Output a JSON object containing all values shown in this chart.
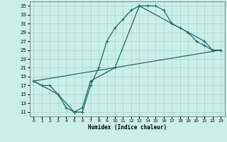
{
  "title": "",
  "xlabel": "Humidex (Indice chaleur)",
  "ylabel": "",
  "bg_color": "#cceee8",
  "grid_color": "#aad8d0",
  "line_color": "#1a6b6b",
  "ylim": [
    10,
    36
  ],
  "xlim": [
    -0.5,
    23.5
  ],
  "yticks": [
    11,
    13,
    15,
    17,
    19,
    21,
    23,
    25,
    27,
    29,
    31,
    33,
    35
  ],
  "xticks": [
    0,
    1,
    2,
    3,
    4,
    5,
    6,
    7,
    8,
    9,
    10,
    11,
    12,
    13,
    14,
    15,
    16,
    17,
    18,
    19,
    20,
    21,
    22,
    23
  ],
  "line1_x": [
    0,
    1,
    2,
    3,
    4,
    5,
    6,
    7,
    8,
    9,
    10,
    11,
    12,
    13,
    14,
    15,
    16,
    17,
    18,
    19,
    20,
    21,
    22,
    23
  ],
  "line1_y": [
    18,
    17,
    17,
    15,
    12,
    11,
    11,
    17,
    21,
    27,
    30,
    32,
    34,
    35,
    35,
    35,
    34,
    31,
    30,
    29,
    27,
    26,
    25,
    25
  ],
  "line2_x": [
    0,
    3,
    5,
    6,
    7,
    10,
    13,
    17,
    19,
    21,
    22,
    23
  ],
  "line2_y": [
    18,
    15,
    11,
    12,
    18,
    21,
    35,
    31,
    29,
    27,
    25,
    25
  ],
  "line3_x": [
    0,
    23
  ],
  "line3_y": [
    18,
    25
  ],
  "marker": "+",
  "markersize": 3.5,
  "linewidth": 0.9
}
